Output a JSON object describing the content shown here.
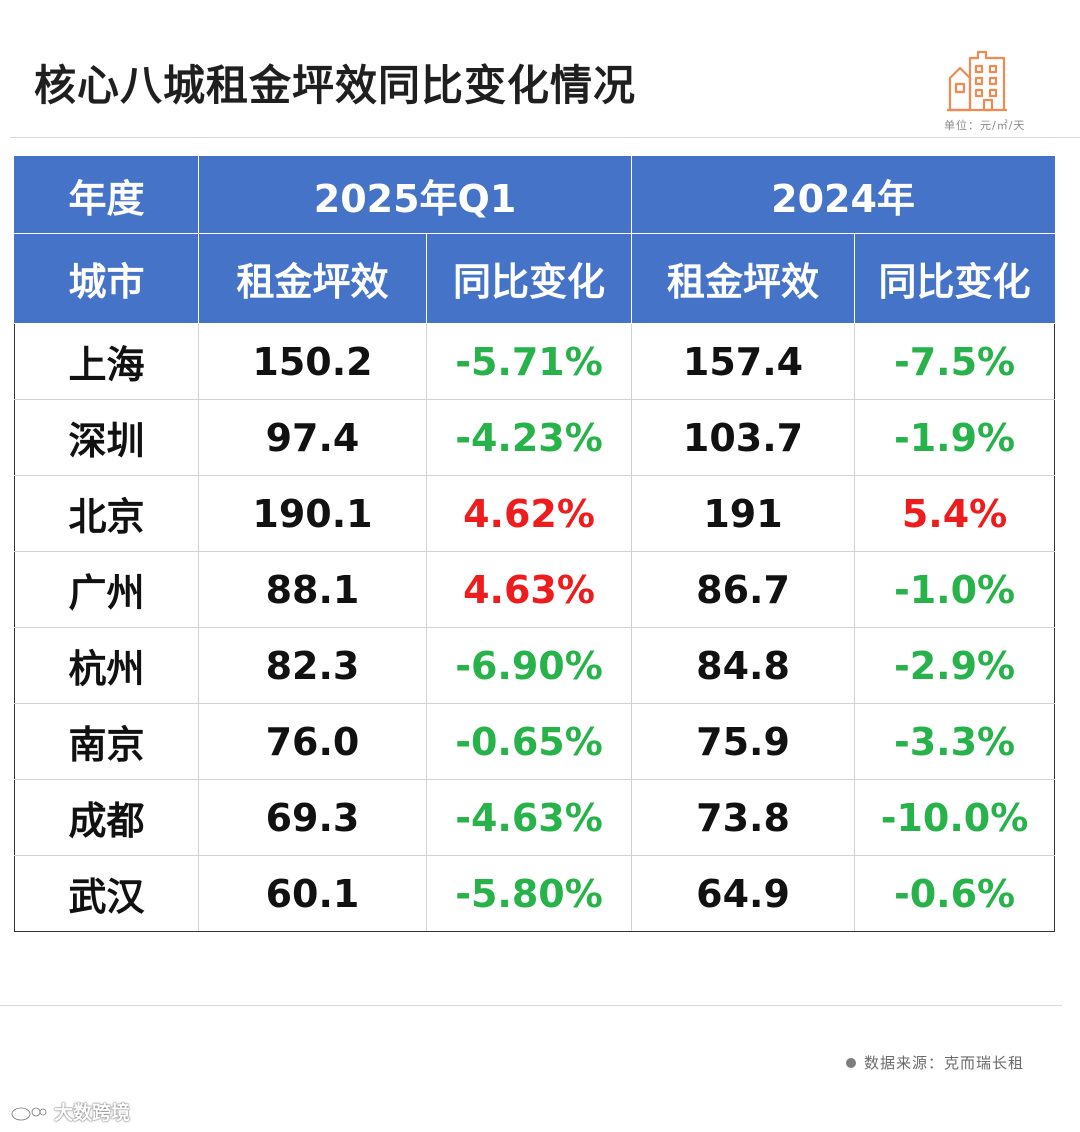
{
  "header": {
    "title": "核心八城租金坪效同比变化情况",
    "unit": "单位：元/㎡/天"
  },
  "table": {
    "header_row1": [
      "年度",
      "2025年Q1",
      "2024年"
    ],
    "header_row2": [
      "城市",
      "租金坪效",
      "同比变化",
      "租金坪效",
      "同比变化"
    ],
    "rows": [
      {
        "city": "上海",
        "rent_2025q1": "150.2",
        "yoy_2025q1": "-5.71%",
        "rent_2024": "157.4",
        "yoy_2024": "-7.5%"
      },
      {
        "city": "深圳",
        "rent_2025q1": "97.4",
        "yoy_2025q1": "-4.23%",
        "rent_2024": "103.7",
        "yoy_2024": "-1.9%"
      },
      {
        "city": "北京",
        "rent_2025q1": "190.1",
        "yoy_2025q1": "4.62%",
        "rent_2024": "191",
        "yoy_2024": "5.4%"
      },
      {
        "city": "广州",
        "rent_2025q1": "88.1",
        "yoy_2025q1": "4.63%",
        "rent_2024": "86.7",
        "yoy_2024": "-1.0%"
      },
      {
        "city": "杭州",
        "rent_2025q1": "82.3",
        "yoy_2025q1": "-6.90%",
        "rent_2024": "84.8",
        "yoy_2024": "-2.9%"
      },
      {
        "city": "南京",
        "rent_2025q1": "76.0",
        "yoy_2025q1": "-0.65%",
        "rent_2024": "75.9",
        "yoy_2024": "-3.3%"
      },
      {
        "city": "成都",
        "rent_2025q1": "69.3",
        "yoy_2025q1": "-4.63%",
        "rent_2024": "73.8",
        "yoy_2024": "-10.0%"
      },
      {
        "city": "武汉",
        "rent_2025q1": "60.1",
        "yoy_2025q1": "-5.80%",
        "rent_2024": "64.9",
        "yoy_2024": "-0.6%"
      }
    ]
  },
  "footer": {
    "source": "数据来源：克而瑞长租",
    "brand": "大数跨境"
  },
  "colors": {
    "header_bg": "#4573c8",
    "negative": "#27b34a",
    "positive": "#ee1c1c"
  },
  "icons": {
    "building": "building-icon",
    "source_dot": "dot-icon",
    "brand_logo": "weibo-logo-icon"
  }
}
